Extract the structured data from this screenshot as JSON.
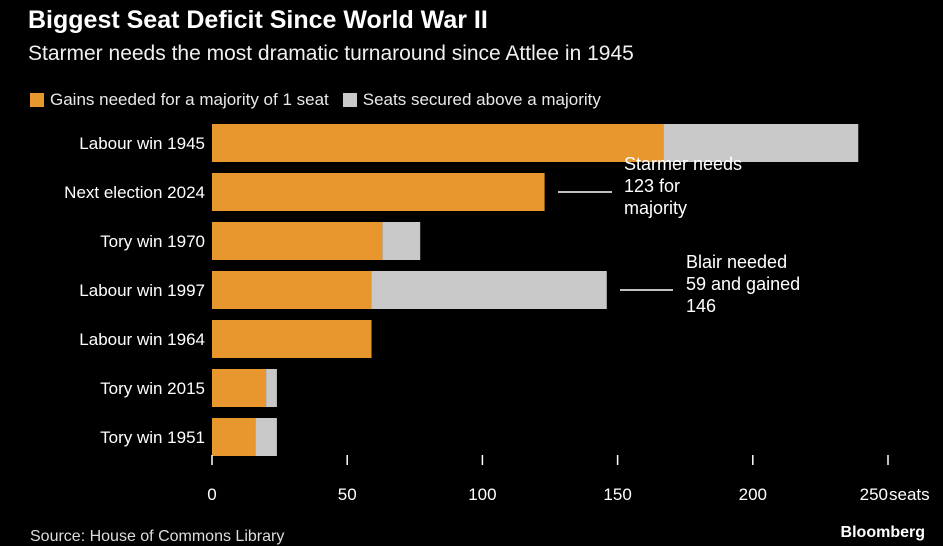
{
  "header": {
    "title": "Biggest Seat Deficit Since World War II",
    "subtitle": "Starmer needs the most dramatic turnaround since Attlee in 1945"
  },
  "footer": {
    "source": "Source: House of Commons Library",
    "brand": "Bloomberg"
  },
  "colors": {
    "background": "#000000",
    "gains": "#E8962E",
    "secured": "#C8C8C8"
  },
  "chart_data": {
    "type": "bar",
    "orientation": "horizontal",
    "stacked": true,
    "title": "Biggest Seat Deficit Since World War II",
    "subtitle": "Starmer needs the most dramatic turnaround since Attlee in 1945",
    "categories": [
      "Labour win 1945",
      "Next election 2024",
      "Tory win 1970",
      "Labour win 1997",
      "Labour win 1964",
      "Tory win 2015",
      "Tory win 1951"
    ],
    "series": [
      {
        "name": "Gains needed for a majority of 1 seat",
        "color": "#E8962E",
        "values": [
          167,
          123,
          63,
          59,
          59,
          20,
          16
        ]
      },
      {
        "name": "Seats secured above a majority",
        "color": "#C8C8C8",
        "values": [
          72,
          0,
          14,
          87,
          0,
          4,
          8
        ]
      }
    ],
    "xlim": [
      0,
      250
    ],
    "xticks": [
      0,
      50,
      100,
      150,
      200,
      250
    ],
    "xtick_labels": [
      "0",
      "50",
      "100",
      "150",
      "200",
      "250"
    ],
    "xunit": "seats",
    "grid": false,
    "legend_position": "top-left",
    "annotations": [
      {
        "category": "Next election 2024",
        "lines": [
          "Starmer needs",
          "123 for",
          "majority"
        ]
      },
      {
        "category": "Labour win 1997",
        "lines": [
          "Blair needed",
          "59 and gained",
          "146"
        ]
      }
    ]
  }
}
